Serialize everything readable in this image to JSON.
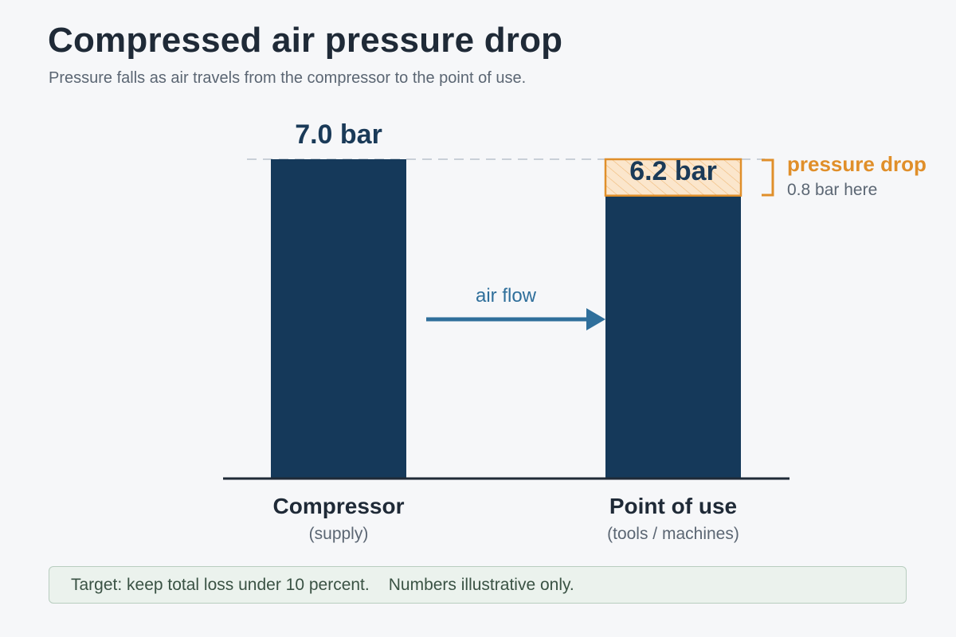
{
  "title": "Compressed air pressure drop",
  "subtitle": "Pressure falls as air travels from the compressor to the point of use.",
  "chart_data": {
    "type": "bar",
    "categories": [
      "Compressor",
      "Point of use"
    ],
    "category_sublabels": [
      "(supply)",
      "(tools / machines)"
    ],
    "values": [
      7.0,
      6.2
    ],
    "value_labels": [
      "7.0 bar",
      "6.2 bar"
    ],
    "unit": "bar",
    "ylim": [
      0,
      7.0
    ],
    "grid": false,
    "reference_line": {
      "value": 7.0,
      "style": "dashed"
    },
    "drop": {
      "value": 0.8,
      "label": "pressure drop",
      "sublabel": "0.8 bar here"
    },
    "flow_arrow": {
      "label": "air flow",
      "direction": "left-to-right"
    }
  },
  "footer": {
    "note1": "Target: keep total loss under 10 percent.",
    "note2": "Numbers illustrative only."
  },
  "colors": {
    "bar": "#15395a",
    "drop": "#e08f2a",
    "drop_fill": "#fbe6cc",
    "arrow": "#2f6f9b",
    "axis": "#1f2a37",
    "reference": "#c9d0d8"
  }
}
